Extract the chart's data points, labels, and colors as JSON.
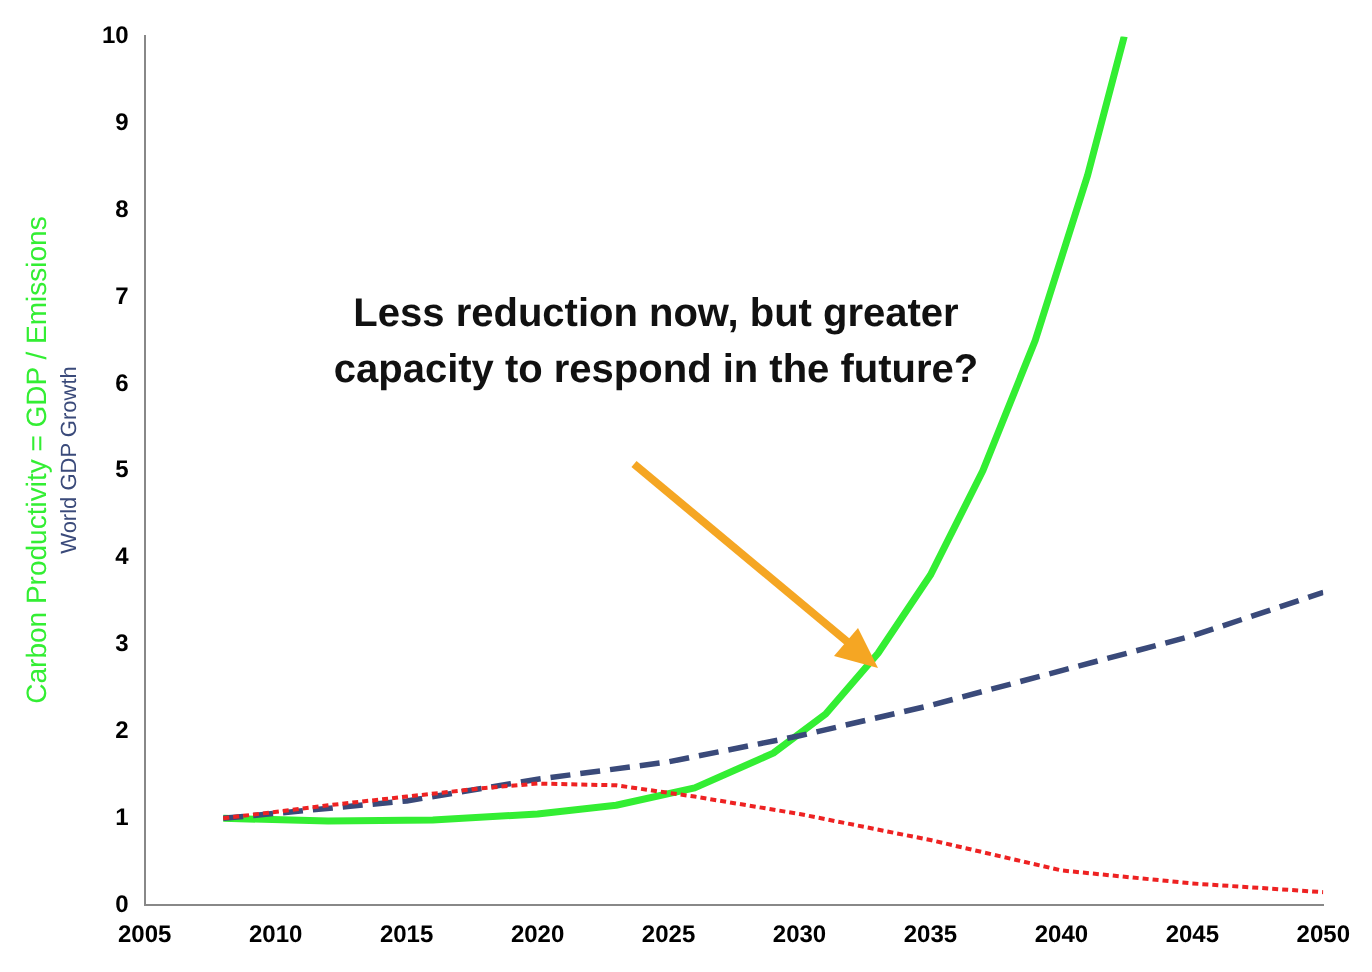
{
  "chart_data": {
    "type": "line",
    "ylabel": "Carbon Productivity = GDP / Emissions",
    "annotations": [
      "Less reduction now, but greater capacity to respond in the future?"
    ],
    "xlim": [
      2005,
      2050
    ],
    "xticks": [
      2005,
      2010,
      2015,
      2020,
      2025,
      2030,
      2035,
      2040,
      2045,
      2050
    ],
    "ylim": [
      0,
      10
    ],
    "yticks": [
      0,
      1,
      2,
      3,
      4,
      5,
      6,
      7,
      8,
      9,
      10
    ],
    "grid": false,
    "legend": false,
    "marker": "none",
    "series": [
      {
        "color": "#33ee33",
        "line_style": "solid",
        "x": [
          2008,
          2012,
          2016,
          2020,
          2023,
          2026,
          2029,
          2031,
          2033,
          2035,
          2037,
          2039,
          2041,
          2042.4
        ],
        "values": [
          1.0,
          0.97,
          0.98,
          1.05,
          1.15,
          1.35,
          1.75,
          2.2,
          2.9,
          3.8,
          5.0,
          6.5,
          8.4,
          10
        ]
      },
      {
        "name": "World GDP Growth",
        "color": "#3a4a7a",
        "line_style": "dashed",
        "x": [
          2008,
          2015,
          2020,
          2025,
          2030,
          2035,
          2040,
          2045,
          2050
        ],
        "values": [
          1.0,
          1.2,
          1.45,
          1.65,
          1.95,
          2.3,
          2.7,
          3.1,
          3.6
        ]
      },
      {
        "color": "#ee2222",
        "line_style": "dotted",
        "x": [
          2008,
          2012,
          2015,
          2018,
          2020,
          2023,
          2026,
          2030,
          2035,
          2040,
          2045,
          2050
        ],
        "values": [
          1.0,
          1.15,
          1.25,
          1.35,
          1.4,
          1.38,
          1.25,
          1.05,
          0.75,
          0.4,
          0.25,
          0.15
        ]
      }
    ]
  }
}
